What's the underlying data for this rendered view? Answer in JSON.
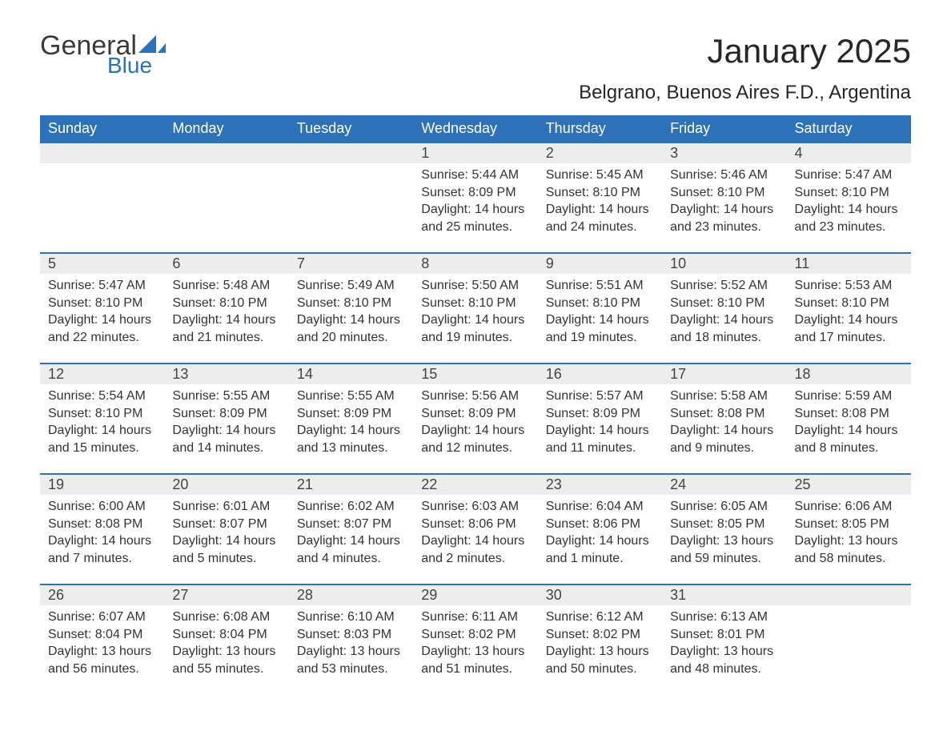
{
  "logo": {
    "text_general": "General",
    "text_blue": "Blue",
    "sail_color": "#2d72b8"
  },
  "title": "January 2025",
  "subtitle": "Belgrano, Buenos Aires F.D., Argentina",
  "colors": {
    "header_bg": "#2d72b8",
    "header_text": "#ffffff",
    "daynum_bg": "#ededed",
    "row_border": "#2d72b8",
    "body_text": "#333333",
    "page_bg": "#ffffff"
  },
  "typography": {
    "title_fontsize": 42,
    "subtitle_fontsize": 24,
    "header_fontsize": 18,
    "daynum_fontsize": 18,
    "body_fontsize": 16,
    "font_family": "Arial"
  },
  "columns": [
    "Sunday",
    "Monday",
    "Tuesday",
    "Wednesday",
    "Thursday",
    "Friday",
    "Saturday"
  ],
  "weeks": [
    [
      null,
      null,
      null,
      {
        "n": "1",
        "sunrise": "5:44 AM",
        "sunset": "8:09 PM",
        "daylight": "14 hours and 25 minutes."
      },
      {
        "n": "2",
        "sunrise": "5:45 AM",
        "sunset": "8:10 PM",
        "daylight": "14 hours and 24 minutes."
      },
      {
        "n": "3",
        "sunrise": "5:46 AM",
        "sunset": "8:10 PM",
        "daylight": "14 hours and 23 minutes."
      },
      {
        "n": "4",
        "sunrise": "5:47 AM",
        "sunset": "8:10 PM",
        "daylight": "14 hours and 23 minutes."
      }
    ],
    [
      {
        "n": "5",
        "sunrise": "5:47 AM",
        "sunset": "8:10 PM",
        "daylight": "14 hours and 22 minutes."
      },
      {
        "n": "6",
        "sunrise": "5:48 AM",
        "sunset": "8:10 PM",
        "daylight": "14 hours and 21 minutes."
      },
      {
        "n": "7",
        "sunrise": "5:49 AM",
        "sunset": "8:10 PM",
        "daylight": "14 hours and 20 minutes."
      },
      {
        "n": "8",
        "sunrise": "5:50 AM",
        "sunset": "8:10 PM",
        "daylight": "14 hours and 19 minutes."
      },
      {
        "n": "9",
        "sunrise": "5:51 AM",
        "sunset": "8:10 PM",
        "daylight": "14 hours and 19 minutes."
      },
      {
        "n": "10",
        "sunrise": "5:52 AM",
        "sunset": "8:10 PM",
        "daylight": "14 hours and 18 minutes."
      },
      {
        "n": "11",
        "sunrise": "5:53 AM",
        "sunset": "8:10 PM",
        "daylight": "14 hours and 17 minutes."
      }
    ],
    [
      {
        "n": "12",
        "sunrise": "5:54 AM",
        "sunset": "8:10 PM",
        "daylight": "14 hours and 15 minutes."
      },
      {
        "n": "13",
        "sunrise": "5:55 AM",
        "sunset": "8:09 PM",
        "daylight": "14 hours and 14 minutes."
      },
      {
        "n": "14",
        "sunrise": "5:55 AM",
        "sunset": "8:09 PM",
        "daylight": "14 hours and 13 minutes."
      },
      {
        "n": "15",
        "sunrise": "5:56 AM",
        "sunset": "8:09 PM",
        "daylight": "14 hours and 12 minutes."
      },
      {
        "n": "16",
        "sunrise": "5:57 AM",
        "sunset": "8:09 PM",
        "daylight": "14 hours and 11 minutes."
      },
      {
        "n": "17",
        "sunrise": "5:58 AM",
        "sunset": "8:08 PM",
        "daylight": "14 hours and 9 minutes."
      },
      {
        "n": "18",
        "sunrise": "5:59 AM",
        "sunset": "8:08 PM",
        "daylight": "14 hours and 8 minutes."
      }
    ],
    [
      {
        "n": "19",
        "sunrise": "6:00 AM",
        "sunset": "8:08 PM",
        "daylight": "14 hours and 7 minutes."
      },
      {
        "n": "20",
        "sunrise": "6:01 AM",
        "sunset": "8:07 PM",
        "daylight": "14 hours and 5 minutes."
      },
      {
        "n": "21",
        "sunrise": "6:02 AM",
        "sunset": "8:07 PM",
        "daylight": "14 hours and 4 minutes."
      },
      {
        "n": "22",
        "sunrise": "6:03 AM",
        "sunset": "8:06 PM",
        "daylight": "14 hours and 2 minutes."
      },
      {
        "n": "23",
        "sunrise": "6:04 AM",
        "sunset": "8:06 PM",
        "daylight": "14 hours and 1 minute."
      },
      {
        "n": "24",
        "sunrise": "6:05 AM",
        "sunset": "8:05 PM",
        "daylight": "13 hours and 59 minutes."
      },
      {
        "n": "25",
        "sunrise": "6:06 AM",
        "sunset": "8:05 PM",
        "daylight": "13 hours and 58 minutes."
      }
    ],
    [
      {
        "n": "26",
        "sunrise": "6:07 AM",
        "sunset": "8:04 PM",
        "daylight": "13 hours and 56 minutes."
      },
      {
        "n": "27",
        "sunrise": "6:08 AM",
        "sunset": "8:04 PM",
        "daylight": "13 hours and 55 minutes."
      },
      {
        "n": "28",
        "sunrise": "6:10 AM",
        "sunset": "8:03 PM",
        "daylight": "13 hours and 53 minutes."
      },
      {
        "n": "29",
        "sunrise": "6:11 AM",
        "sunset": "8:02 PM",
        "daylight": "13 hours and 51 minutes."
      },
      {
        "n": "30",
        "sunrise": "6:12 AM",
        "sunset": "8:02 PM",
        "daylight": "13 hours and 50 minutes."
      },
      {
        "n": "31",
        "sunrise": "6:13 AM",
        "sunset": "8:01 PM",
        "daylight": "13 hours and 48 minutes."
      },
      null
    ]
  ],
  "labels": {
    "sunrise": "Sunrise: ",
    "sunset": "Sunset: ",
    "daylight": "Daylight: "
  }
}
